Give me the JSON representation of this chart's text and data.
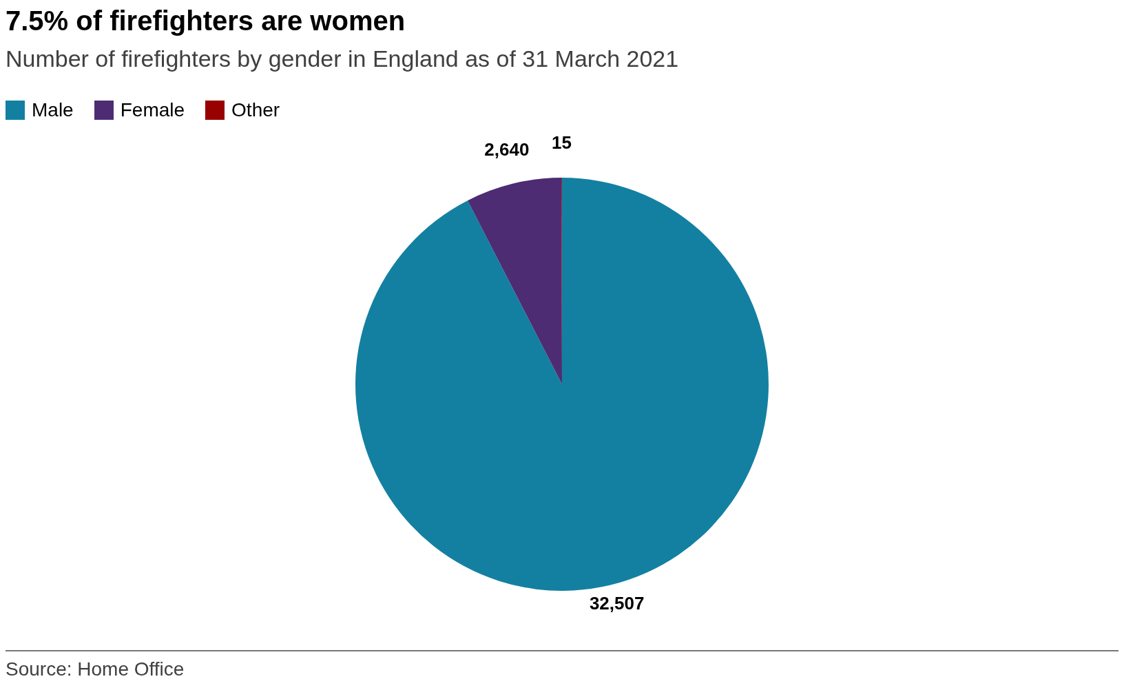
{
  "chart_data": {
    "type": "pie",
    "title": "7.5% of firefighters are women",
    "subtitle": "Number of firefighters by gender in England as of 31 March 2021",
    "categories": [
      "Male",
      "Female",
      "Other"
    ],
    "values": [
      32507,
      2640,
      15
    ],
    "colors": [
      "#1380a1",
      "#4d2c73",
      "#990000"
    ],
    "value_labels": [
      "32,507",
      "2,640",
      "15"
    ],
    "legend": "top left",
    "annotations": [
      "Source: Home Office"
    ]
  }
}
